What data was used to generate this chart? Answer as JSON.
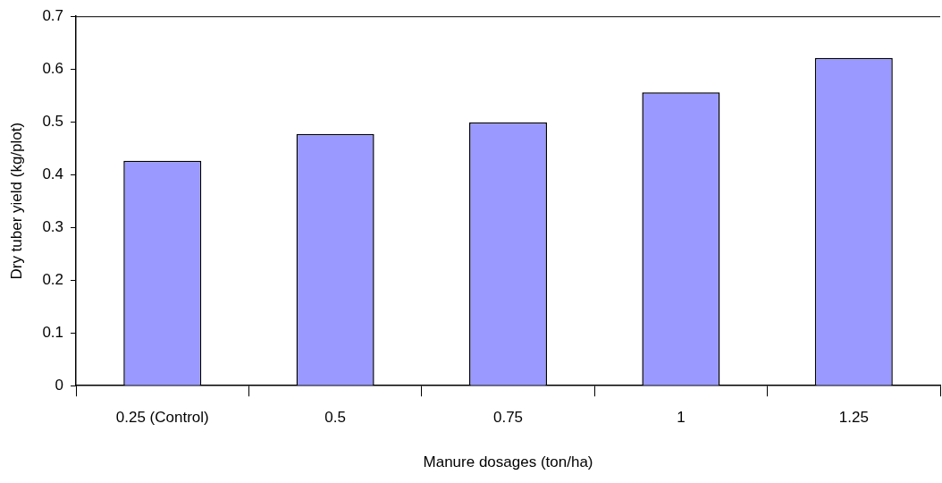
{
  "chart_data": {
    "type": "bar",
    "xlabel": "Manure dosages (ton/ha)",
    "ylabel": "Dry tuber yield (kg/plot)",
    "categories": [
      "0.25 (Control)",
      "0.5",
      "0.75",
      "1",
      "1.25"
    ],
    "values": [
      0.426,
      0.477,
      0.499,
      0.556,
      0.621
    ],
    "color": "#9999ff",
    "ylim": [
      0,
      0.7
    ],
    "yticks": [
      0,
      0.1,
      0.2,
      0.3,
      0.4,
      0.5,
      0.6,
      0.7
    ],
    "grid": false,
    "legend": false
  }
}
